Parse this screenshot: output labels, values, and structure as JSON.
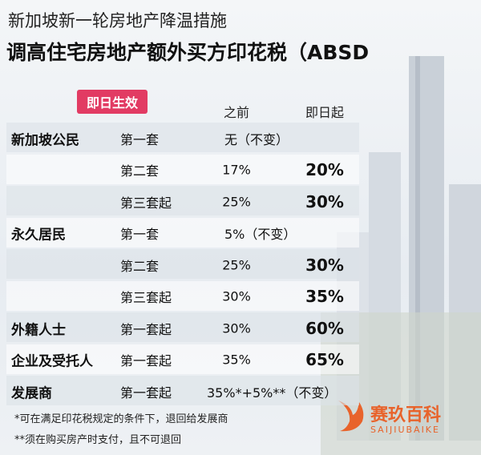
{
  "header": {
    "subtitle": "新加坡新一轮房地产降温措施",
    "title": "调高住宅房地产额外买方印花税（ABSD"
  },
  "badge": "即日生效",
  "columns": [
    "之前",
    "即日起"
  ],
  "groups": [
    {
      "name": "新加坡公民",
      "rows": [
        {
          "item": "第一套",
          "merged": "无（不变）"
        },
        {
          "item": "第二套",
          "before": "17%",
          "after": "20%"
        },
        {
          "item": "第三套起",
          "before": "25%",
          "after": "30%"
        }
      ]
    },
    {
      "name": "永久居民",
      "rows": [
        {
          "item": "第一套",
          "merged": "5%（不变）"
        },
        {
          "item": "第二套",
          "before": "25%",
          "after": "30%"
        },
        {
          "item": "第三套起",
          "before": "30%",
          "after": "35%"
        }
      ]
    },
    {
      "name": "外籍人士",
      "rows": [
        {
          "item": "第一套起",
          "before": "30%",
          "after": "60%"
        }
      ]
    },
    {
      "name": "企业及受托人",
      "rows": [
        {
          "item": "第一套起",
          "before": "35%",
          "after": "65%"
        }
      ]
    },
    {
      "name": "发展商",
      "rows": [
        {
          "item": "第一套起",
          "merged": "35%*+5%**（不变）"
        }
      ]
    }
  ],
  "footnotes": [
    "*可在满足印花税规定的条件下，退回给发展商",
    "**须在购买房产时支付，且不可退回"
  ],
  "watermark": {
    "name": "赛玖百科",
    "latin": "SAIJIUBAIKE"
  }
}
